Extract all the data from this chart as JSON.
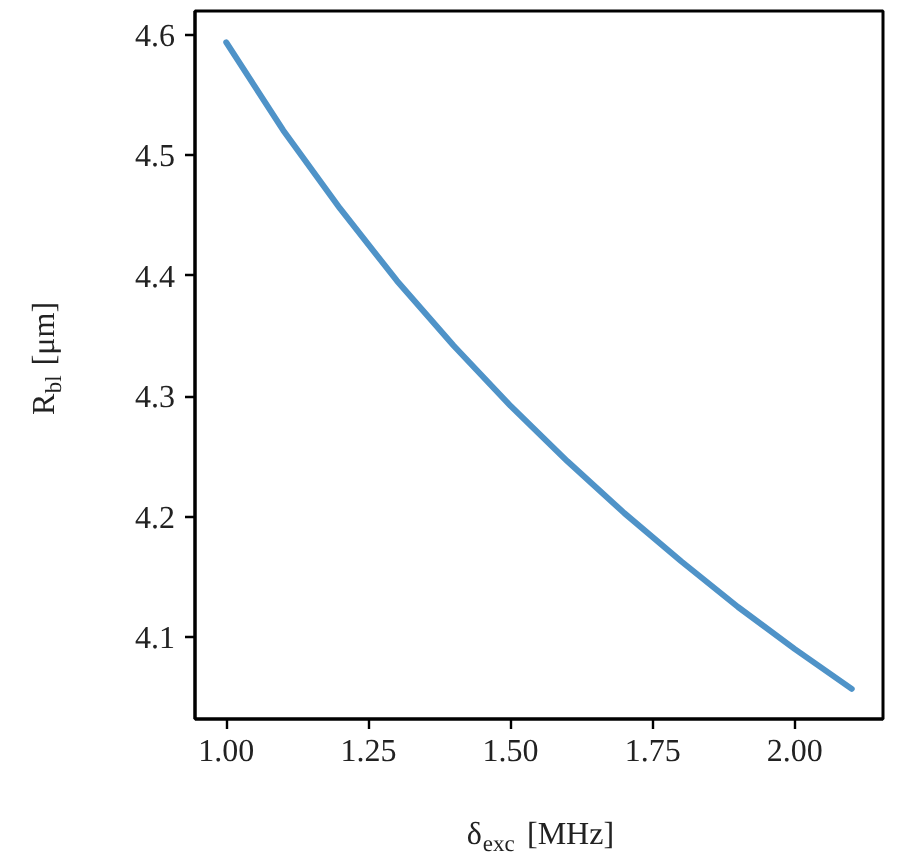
{
  "chart_data": {
    "type": "line",
    "xlabel": "δ$_{exc}$ [MHz]",
    "ylabel": "R$_{bl}$ [μm]",
    "x": [
      1.0,
      1.1,
      1.2,
      1.3,
      1.4,
      1.5,
      1.6,
      1.7,
      1.8,
      1.9,
      2.0,
      2.1
    ],
    "series": [
      {
        "color": "#4f93c8",
        "values": [
          4.594,
          4.521,
          4.456,
          4.396,
          4.342,
          4.292,
          4.246,
          4.203,
          4.163,
          4.125,
          4.09,
          4.057
        ]
      }
    ],
    "xlim": [
      0.945,
      2.155
    ],
    "ylim": [
      4.032,
      4.62
    ],
    "xticks": [
      {
        "value": 1.0,
        "label": "1.00"
      },
      {
        "value": 1.25,
        "label": "1.25"
      },
      {
        "value": 1.5,
        "label": "1.50"
      },
      {
        "value": 1.75,
        "label": "1.75"
      },
      {
        "value": 2.0,
        "label": "2.00"
      }
    ],
    "yticks": [
      4.1,
      4.2,
      4.3,
      4.4,
      4.5,
      4.6
    ],
    "grid": false,
    "marker": "none",
    "line_style": "solid"
  }
}
